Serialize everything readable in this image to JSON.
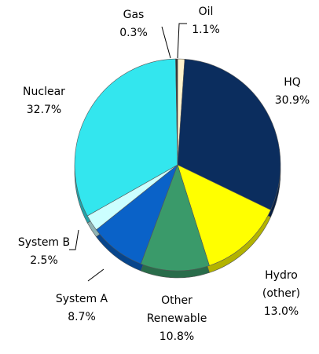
{
  "chart_data": {
    "type": "pie",
    "categories": [
      "Oil",
      "HQ",
      "Hydro (other)",
      "Other Renewable",
      "System A",
      "System B",
      "Nuclear",
      "Gas"
    ],
    "values": [
      1.1,
      30.9,
      13.0,
      10.8,
      8.7,
      2.5,
      32.7,
      0.3
    ],
    "value_labels": [
      "1.1%",
      "30.9%",
      "13.0%",
      "10.8%",
      "8.7%",
      "2.5%",
      "32.7%",
      "0.3%"
    ],
    "colors": [
      "#fff2cc",
      "#0b2d5e",
      "#ffff00",
      "#3a9a6a",
      "#0a62c8",
      "#ccffff",
      "#33e6ee",
      "#333333"
    ]
  }
}
